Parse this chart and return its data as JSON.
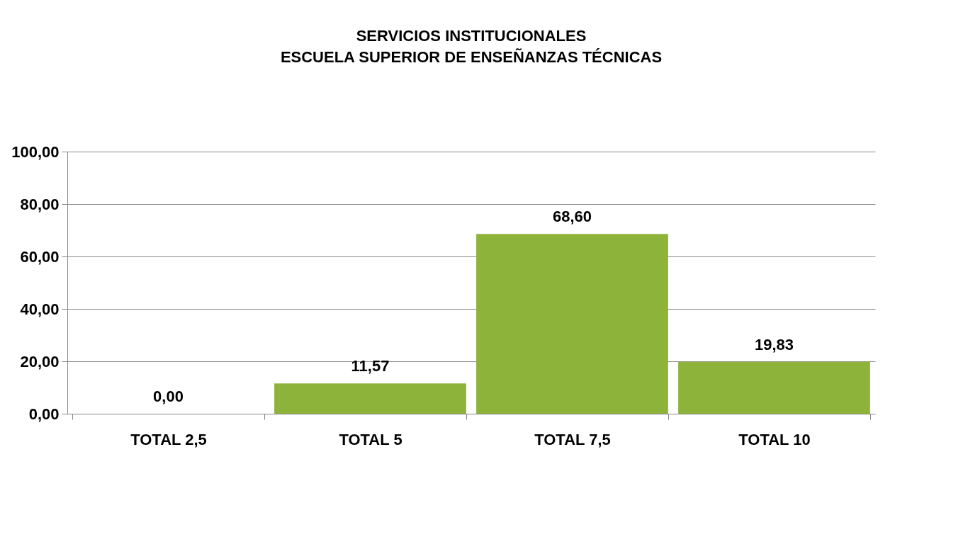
{
  "chart_data": {
    "type": "bar",
    "title": "SERVICIOS INSTITUCIONALES\nESCUELA SUPERIOR DE ENSEÑANZAS TÉCNICAS",
    "categories": [
      "TOTAL 2,5",
      "TOTAL 5",
      "TOTAL 7,5",
      "TOTAL 10"
    ],
    "values": [
      0.0,
      11.57,
      68.6,
      19.83
    ],
    "value_labels": [
      "0,00",
      "11,57",
      "68,60",
      "19,83"
    ],
    "color": "#8db33a",
    "ylim": [
      0,
      100
    ],
    "yticks": [
      {
        "value": 0,
        "label": "0,00"
      },
      {
        "value": 20,
        "label": "20,00"
      },
      {
        "value": 40,
        "label": "40,00"
      },
      {
        "value": 60,
        "label": "60,00"
      },
      {
        "value": 80,
        "label": "80,00"
      },
      {
        "value": 100,
        "label": "100,00"
      }
    ],
    "grid": "y"
  }
}
